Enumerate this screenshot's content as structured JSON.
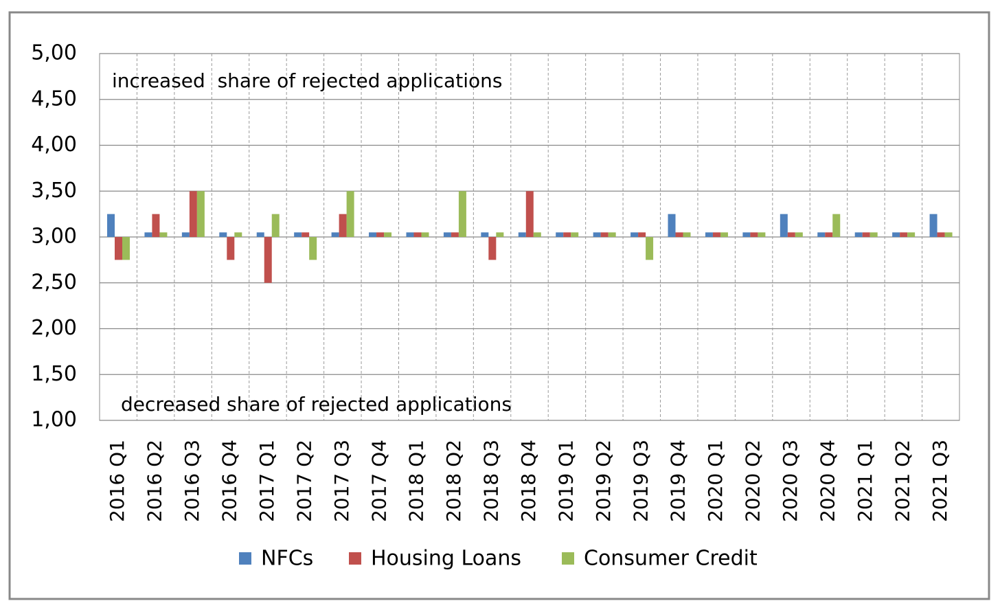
{
  "chart_data": {
    "type": "bar",
    "categories": [
      "2016 Q1",
      "2016 Q2",
      "2016 Q3",
      "2016 Q4",
      "2017 Q1",
      "2017 Q2",
      "2017 Q3",
      "2017 Q4",
      "2018 Q1",
      "2018 Q2",
      "2018 Q3",
      "2018 Q4",
      "2019 Q1",
      "2019 Q2",
      "2019 Q3",
      "2019 Q4",
      "2020 Q1",
      "2020 Q2",
      "2020 Q3",
      "2020 Q4",
      "2021 Q1",
      "2021 Q2",
      "2021 Q3"
    ],
    "series": [
      {
        "name": "NFCs",
        "color": "#4f81bd",
        "values": [
          3.25,
          3.05,
          3.05,
          3.05,
          3.05,
          3.05,
          3.05,
          3.05,
          3.05,
          3.05,
          3.05,
          3.05,
          3.05,
          3.05,
          3.05,
          3.25,
          3.05,
          3.05,
          3.25,
          3.05,
          3.05,
          3.05,
          3.25
        ]
      },
      {
        "name": "Housing Loans",
        "color": "#c0504d",
        "values": [
          2.75,
          3.25,
          3.5,
          2.75,
          2.5,
          3.05,
          3.25,
          3.05,
          3.05,
          3.05,
          2.75,
          3.5,
          3.05,
          3.05,
          3.05,
          3.05,
          3.05,
          3.05,
          3.05,
          3.05,
          3.05,
          3.05,
          3.05
        ]
      },
      {
        "name": "Consumer Credit",
        "color": "#9bbb59",
        "values": [
          2.75,
          3.05,
          3.5,
          3.05,
          3.25,
          2.75,
          3.5,
          3.05,
          3.05,
          3.5,
          3.05,
          3.05,
          3.05,
          3.05,
          2.75,
          3.05,
          3.05,
          3.05,
          3.05,
          3.25,
          3.05,
          3.05,
          3.05
        ]
      }
    ],
    "baseline": 3,
    "ylim": [
      1,
      5
    ],
    "yticks": [
      {
        "value": 1,
        "label": "1,00"
      },
      {
        "value": 1.5,
        "label": "1,50"
      },
      {
        "value": 2,
        "label": "2,00"
      },
      {
        "value": 2.5,
        "label": "2,50"
      },
      {
        "value": 3,
        "label": "3,00"
      },
      {
        "value": 3.5,
        "label": "3,50"
      },
      {
        "value": 4,
        "label": "4,00"
      },
      {
        "value": 4.5,
        "label": "4,50"
      },
      {
        "value": 5,
        "label": "5,00"
      }
    ],
    "grid": true,
    "annotations": [
      "increased  share of rejected applications",
      "decreased share of rejected applications"
    ],
    "legend": "bottom"
  }
}
